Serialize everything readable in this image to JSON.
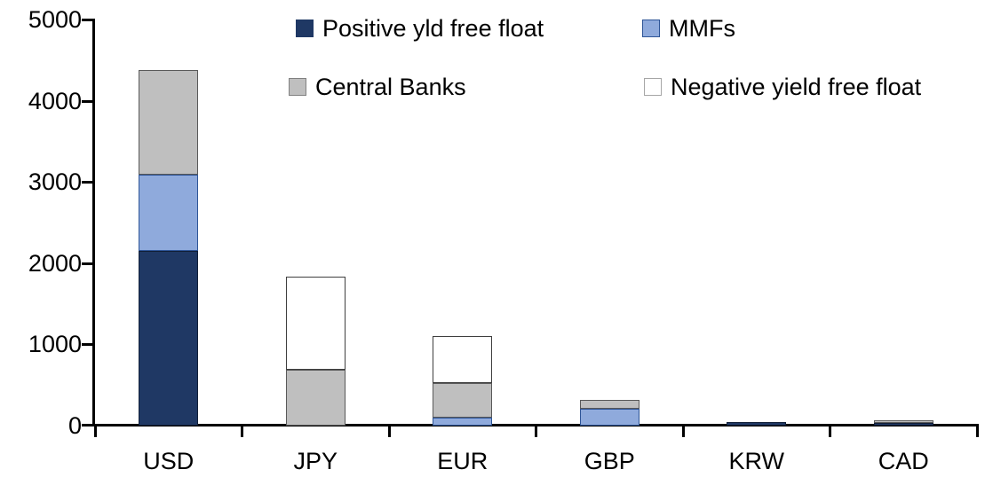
{
  "chart_data": {
    "type": "bar",
    "stacked": true,
    "title": "",
    "xlabel": "",
    "ylabel": "",
    "categories": [
      "USD",
      "JPY",
      "EUR",
      "GBP",
      "KRW",
      "CAD"
    ],
    "series": [
      {
        "name": "Positive yld free float",
        "color": "#1F3864",
        "border": "#111F38",
        "swatch_border": "#1F3864",
        "values": [
          2150,
          0,
          0,
          0,
          45,
          30
        ]
      },
      {
        "name": "MMFs",
        "color": "#8FAADC",
        "border": "#2E5597",
        "swatch_border": "#2E5597",
        "values": [
          940,
          0,
          100,
          210,
          0,
          0
        ]
      },
      {
        "name": "Central Banks",
        "color": "#BFBFBF",
        "border": "#595959",
        "swatch_border": "#808080",
        "values": [
          1290,
          690,
          425,
          110,
          0,
          35
        ]
      },
      {
        "name": "Negative yield free float",
        "color": "#FFFFFF",
        "border": "#3F3F3F",
        "swatch_border": "#A6A6A6",
        "values": [
          0,
          1140,
          575,
          0,
          0,
          0
        ]
      }
    ],
    "totals": {
      "USD": 4380,
      "JPY": 1830,
      "EUR": 1100,
      "GBP": 320,
      "KRW": 45,
      "CAD": 65
    },
    "ylim": [
      0,
      5000
    ],
    "yticks": [
      0,
      1000,
      2000,
      3000,
      4000,
      5000
    ],
    "grid": false,
    "legend_position": "top",
    "legend_rows": [
      [
        "Positive yld free float",
        "MMFs"
      ],
      [
        "Central Banks",
        "Negative yield free float"
      ]
    ],
    "axis_color": "#000000",
    "text_color": "#000000",
    "background": "#FFFFFF"
  }
}
